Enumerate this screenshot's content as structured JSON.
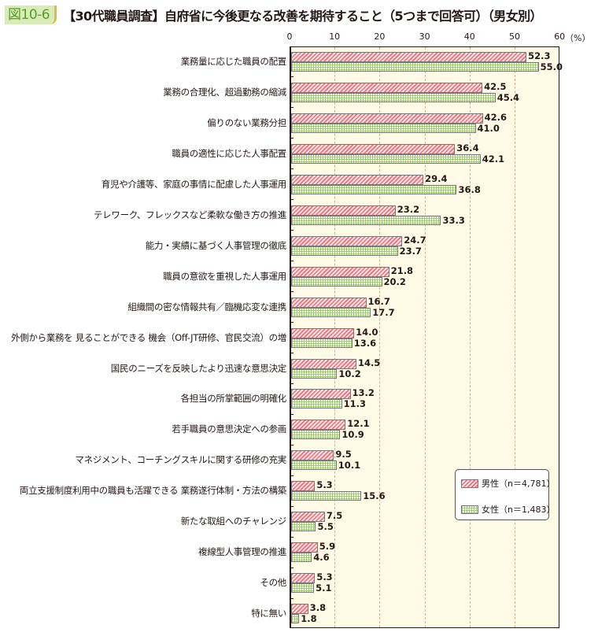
{
  "figure": {
    "tag": "図10-6",
    "title": "【30代職員調査】自府省に今後更なる改善を期待すること（5つまで回答可）（男女別）"
  },
  "axis": {
    "ticks": [
      "0",
      "10",
      "20",
      "30",
      "40",
      "50",
      "60"
    ],
    "unit": "（%）"
  },
  "legend": {
    "male": "男性（n＝4,781）",
    "female": "女性（n＝1,483）"
  },
  "colors": {
    "male_hatch": "#e8707a",
    "female_grid": "#8cbe5a",
    "plot_background": "#fffae6",
    "gridline": "#c9b59a",
    "tag_background": "#d9ecb7",
    "tag_text": "#5a9a2a"
  },
  "chart_data": {
    "type": "bar",
    "orientation": "horizontal",
    "title": "【30代職員調査】自府省に今後更なる改善を期待すること（5つまで回答可）（男女別）",
    "xlabel": "（%）",
    "ylabel": "",
    "xlim": [
      0,
      60
    ],
    "x_ticks": [
      0,
      10,
      20,
      30,
      40,
      50,
      60
    ],
    "grid": "vertical dashed",
    "legend_position": "lower right inside plot",
    "categories": [
      "業務量に応じた職員の配置",
      "業務の合理化、超過勤務の縮減",
      "偏りのない業務分担",
      "職員の適性に応じた人事配置",
      "育児や介護等、家庭の事情に配慮した人事運用",
      "テレワーク、フレックスなど柔軟な働き方の推進",
      "能力・実績に基づく人事管理の徹底",
      "職員の意欲を重視した人事運用",
      "組織間の密な情報共有／臨機応変な連携",
      "外側から業務を 見ることができる 機会（Off-JT研修、官民交流）の増",
      "国民のニーズを反映したより迅速な意思決定",
      "各担当の所掌範囲の明確化",
      "若手職員の意思決定への参画",
      "マネジメント、コーチングスキルに関する研修の充実",
      "両立支援制度利用中の職員も活躍できる 業務遂行体制・方法の構築",
      "新たな取組へのチャレンジ",
      "複線型人事管理の推進",
      "その他",
      "特に無い"
    ],
    "series": [
      {
        "name": "男性（n＝4,781）",
        "values": [
          52.3,
          42.5,
          42.6,
          36.4,
          29.4,
          23.2,
          24.7,
          21.8,
          16.7,
          14.0,
          14.5,
          13.2,
          12.1,
          9.5,
          5.3,
          7.5,
          5.9,
          5.3,
          3.8
        ],
        "labels": [
          "52.3",
          "42.5",
          "42.6",
          "36.4",
          "29.4",
          "23.2",
          "24.7",
          "21.8",
          "16.7",
          "14.0",
          "14.5",
          "13.2",
          "12.1",
          "9.5",
          "5.3",
          "7.5",
          "5.9",
          "5.3",
          "3.8"
        ]
      },
      {
        "name": "女性（n＝1,483）",
        "values": [
          55.0,
          45.4,
          41.0,
          42.1,
          36.8,
          33.3,
          23.7,
          20.2,
          17.7,
          13.6,
          10.2,
          11.3,
          10.9,
          10.1,
          15.6,
          5.5,
          4.6,
          5.1,
          1.8
        ],
        "labels": [
          "55.0",
          "45.4",
          "41.0",
          "42.1",
          "36.8",
          "33.3",
          "23.7",
          "20.2",
          "17.7",
          "13.6",
          "10.2",
          "11.3",
          "10.9",
          "10.1",
          "15.6",
          "5.5",
          "4.6",
          "5.1",
          "1.8"
        ]
      }
    ]
  }
}
